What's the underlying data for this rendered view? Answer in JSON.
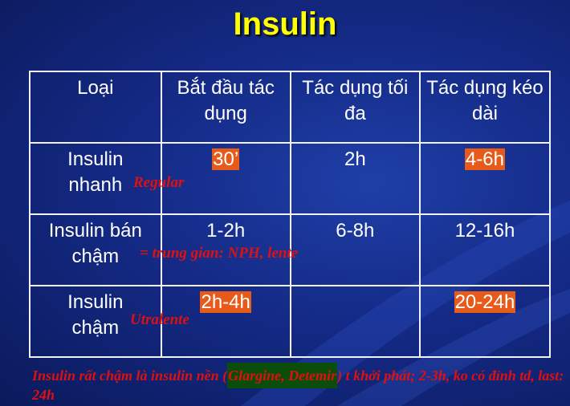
{
  "slide": {
    "title": "Insulin",
    "columns": [
      "Loại",
      "Bắt đầu tác dụng",
      "Tác dụng tối đa",
      "Tác dụng kéo dài"
    ],
    "rows": [
      {
        "name": "Insulin nhanh",
        "onset": "30’",
        "peak": "2h",
        "duration": "4-6h",
        "note": "Regular"
      },
      {
        "name": "Insulin bán chậm",
        "onset": "1-2h",
        "peak": "6-8h",
        "duration": "12-16h",
        "note": "= trung gian: NPH, lente"
      },
      {
        "name": "Insulin chậm",
        "onset": "2h-4h",
        "peak": "",
        "duration": "20-24h",
        "note": "Utralente"
      }
    ],
    "footer": {
      "before": "Insulin rất chậm là insulin nền (",
      "highlight": "Glargine, Detemir",
      "after": ") t khởi phát; 2-3h, ko có đỉnh td, last: 24h"
    }
  }
}
